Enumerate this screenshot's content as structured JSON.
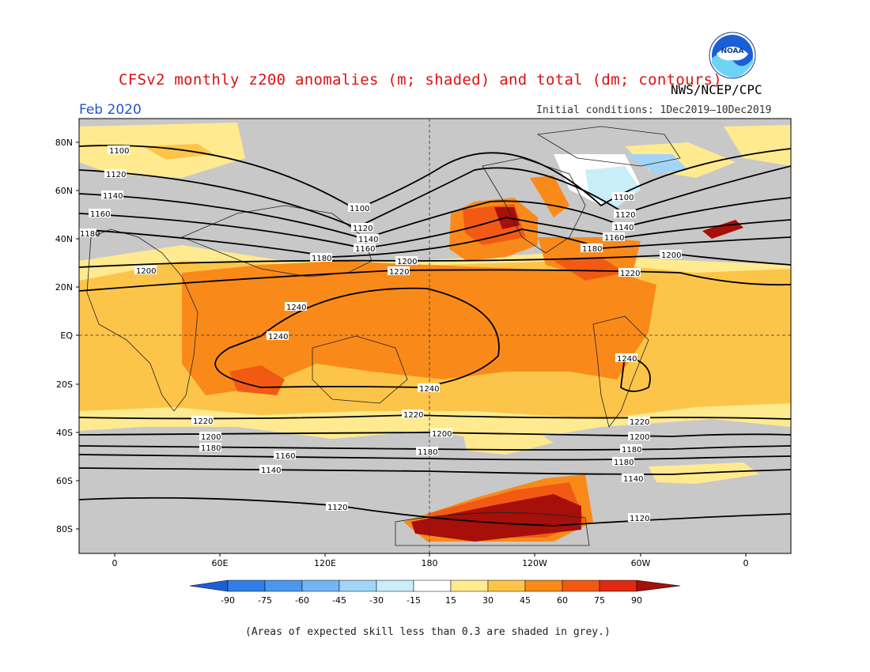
{
  "header": {
    "title": "CFSv2 monthly z200 anomalies (m; shaded) and total (dm; contours)",
    "agency": "NWS/NCEP/CPC",
    "logo_text": "NOAA",
    "forecast_month": "Feb 2020",
    "initial_conditions": "Initial conditions: 1Dec2019–10Dec2019"
  },
  "map": {
    "lat_labels": [
      "80N",
      "60N",
      "40N",
      "20N",
      "EQ",
      "20S",
      "40S",
      "60S",
      "80S"
    ],
    "lon_labels": [
      "0",
      "60E",
      "120E",
      "180",
      "120W",
      "60W",
      "0"
    ],
    "contour_values": [
      "1100",
      "1120",
      "1140",
      "1160",
      "1180",
      "1200",
      "1220",
      "1240"
    ],
    "skill_mask_color": "#c8c8c8",
    "reference_lines": [
      "equator (dashed)",
      "date line 180 (dashed)"
    ]
  },
  "colorbar": {
    "ticks": [
      "-90",
      "-75",
      "-60",
      "-45",
      "-30",
      "-15",
      "15",
      "30",
      "45",
      "60",
      "75",
      "90"
    ],
    "colors": [
      "#1a5fd6",
      "#2f7fe6",
      "#4c97ee",
      "#74b3f4",
      "#a3d4f8",
      "#c9eefa",
      "#ffffff",
      "#ffea8f",
      "#fcc54a",
      "#f98a1a",
      "#f25a14",
      "#dd2a10",
      "#a60f0a"
    ]
  },
  "footnote": "(Areas of expected skill less than 0.3 are shaded in grey.)"
}
